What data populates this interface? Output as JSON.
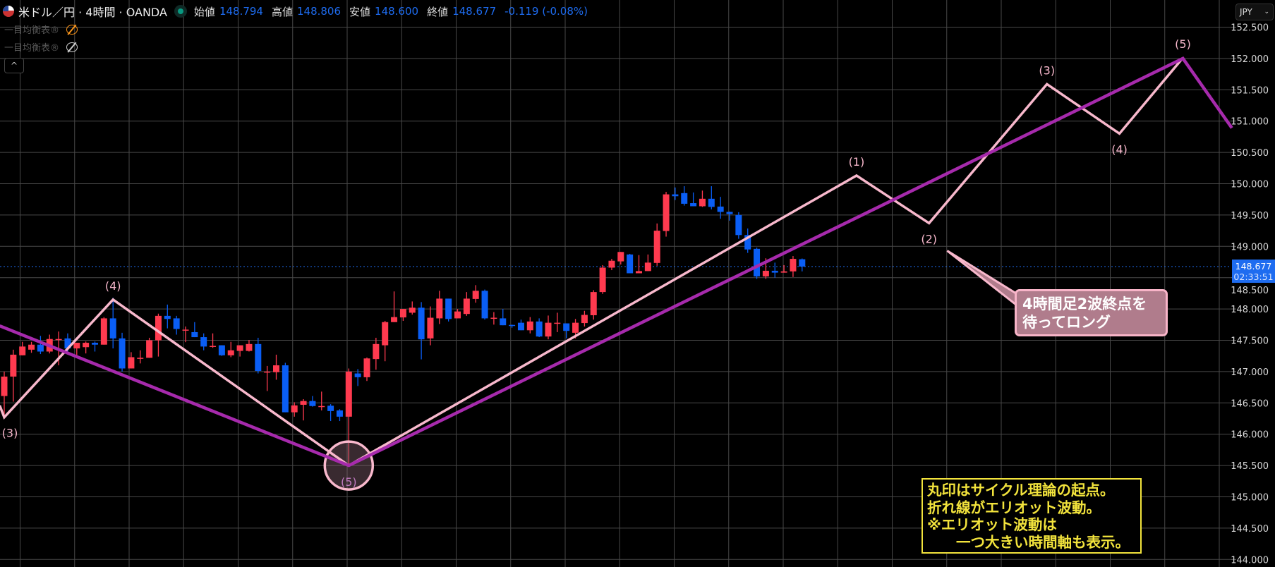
{
  "header": {
    "symbol_title": "米ドル／円 · 4時間 · OANDA",
    "market_status": "open",
    "open_label": "始値",
    "open_value": "148.794",
    "high_label": "高値",
    "high_value": "148.806",
    "low_label": "安値",
    "low_value": "148.600",
    "close_label": "終値",
    "close_value": "148.677",
    "change": "-0.119 (-0.08%)"
  },
  "indicators": [
    {
      "name": "一目均衡表®",
      "icon": "eye-crossed-icon",
      "color": "#f7931a"
    },
    {
      "name": "一目均衡表®",
      "icon": "eye-crossed-icon",
      "color": "#cccccc"
    }
  ],
  "collapse_button": "^",
  "currency_selector": {
    "value": "JPY",
    "icon": "chevron-down-icon"
  },
  "price_axis": {
    "ticks": [
      "152.500",
      "152.000",
      "151.500",
      "151.000",
      "150.500",
      "150.000",
      "149.500",
      "149.000",
      "148.500",
      "148.000",
      "147.500",
      "147.000",
      "146.500",
      "146.000",
      "145.500",
      "145.000",
      "144.500",
      "144.000"
    ],
    "current_price": "148.677",
    "countdown": "02:33:51"
  },
  "callout": {
    "text_line1": "4時間足2波終点を",
    "text_line2": "待ってロング"
  },
  "note": {
    "text": "丸印はサイクル理論の起点。\n折れ線がエリオット波動。\n※エリオット波動は\n　　一つ大きい時間軸も表示。"
  },
  "colors": {
    "up": "#ff3a4f",
    "down": "#0a5ef5",
    "wave_small": "#f8b8cc",
    "wave_large": "#a62aac",
    "accent": "#1e6cf0",
    "note": "#f2e33c",
    "grid": "#484848"
  },
  "chart_data": {
    "type": "candlestick",
    "ylim": [
      144.0,
      152.5
    ],
    "grid": true,
    "candles_ohlc": [
      [
        146.61,
        147.0,
        146.27,
        146.92
      ],
      [
        146.92,
        147.35,
        146.52,
        147.27
      ],
      [
        147.26,
        147.475,
        147.26,
        147.4
      ],
      [
        147.35,
        147.475,
        147.3,
        147.43
      ],
      [
        147.43,
        147.57,
        147.28,
        147.32
      ],
      [
        147.32,
        147.59,
        147.29,
        147.52
      ],
      [
        147.52,
        147.64,
        147.1,
        147.52
      ],
      [
        147.53,
        147.61,
        147.28,
        147.37
      ],
      [
        147.37,
        147.46,
        147.26,
        147.46
      ],
      [
        147.39,
        147.48,
        147.29,
        147.46
      ],
      [
        147.46,
        147.48,
        147.32,
        147.43
      ],
      [
        147.43,
        147.87,
        147.43,
        147.85
      ],
      [
        147.85,
        148.18,
        147.37,
        147.53
      ],
      [
        147.53,
        147.62,
        147.0,
        147.05
      ],
      [
        147.05,
        147.31,
        147.05,
        147.23
      ],
      [
        147.22,
        147.34,
        147.13,
        147.22
      ],
      [
        147.22,
        147.54,
        147.22,
        147.5
      ],
      [
        147.5,
        147.925,
        147.24,
        147.89
      ],
      [
        147.89,
        148.07,
        147.69,
        147.84
      ],
      [
        147.85,
        147.89,
        147.59,
        147.68
      ],
      [
        147.67,
        147.72,
        147.47,
        147.67
      ],
      [
        147.63,
        147.79,
        147.55,
        147.55
      ],
      [
        147.55,
        147.61,
        147.34,
        147.4
      ],
      [
        147.41,
        147.61,
        147.38,
        147.41
      ],
      [
        147.42,
        147.42,
        147.25,
        147.26
      ],
      [
        147.26,
        147.475,
        147.23,
        147.34
      ],
      [
        147.33,
        147.42,
        147.24,
        147.42
      ],
      [
        147.33,
        147.505,
        147.32,
        147.44
      ],
      [
        147.44,
        147.54,
        146.97,
        147.01
      ],
      [
        147.0,
        147.09,
        146.69,
        147.0
      ],
      [
        146.99,
        147.27,
        146.87,
        147.1
      ],
      [
        147.1,
        147.14,
        146.35,
        146.35
      ],
      [
        146.35,
        146.51,
        146.28,
        146.46
      ],
      [
        146.47,
        146.56,
        146.22,
        146.53
      ],
      [
        146.53,
        146.61,
        146.44,
        146.45
      ],
      [
        146.45,
        146.68,
        146.38,
        146.45
      ],
      [
        146.455,
        146.48,
        146.21,
        146.37
      ],
      [
        146.38,
        146.4,
        146.21,
        146.28
      ],
      [
        146.28,
        147.05,
        145.52,
        147.0
      ],
      [
        146.97,
        147.04,
        146.77,
        146.91
      ],
      [
        146.91,
        147.225,
        146.85,
        147.21
      ],
      [
        147.2,
        147.54,
        147.03,
        147.44
      ],
      [
        147.42,
        147.81,
        147.165,
        147.79
      ],
      [
        147.79,
        148.28,
        147.79,
        147.87
      ],
      [
        147.865,
        148.0,
        147.81,
        148.0
      ],
      [
        147.94,
        148.12,
        147.91,
        148.02
      ],
      [
        148.02,
        148.11,
        147.195,
        147.515
      ],
      [
        147.53,
        148.04,
        147.42,
        147.86
      ],
      [
        147.85,
        148.29,
        147.76,
        148.165
      ],
      [
        148.165,
        148.165,
        147.8,
        147.84
      ],
      [
        147.85,
        148.0,
        147.85,
        147.96
      ],
      [
        147.92,
        148.27,
        147.89,
        148.165
      ],
      [
        148.16,
        148.38,
        148.1,
        148.29
      ],
      [
        148.29,
        148.31,
        147.83,
        147.85
      ],
      [
        147.86,
        147.95,
        147.75,
        147.86
      ],
      [
        147.85,
        148.0,
        147.74,
        147.74
      ],
      [
        147.745,
        147.75,
        147.7,
        147.74
      ],
      [
        147.78,
        147.83,
        147.66,
        147.66
      ],
      [
        147.66,
        147.87,
        147.61,
        147.8
      ],
      [
        147.8,
        147.85,
        147.55,
        147.56
      ],
      [
        147.56,
        147.895,
        147.515,
        147.78
      ],
      [
        147.78,
        147.94,
        147.63,
        147.78
      ],
      [
        147.77,
        147.77,
        147.53,
        147.65
      ],
      [
        147.62,
        147.84,
        147.53,
        147.78
      ],
      [
        147.775,
        147.97,
        147.72,
        147.905
      ],
      [
        147.9,
        148.3,
        147.83,
        148.27
      ],
      [
        148.27,
        148.7,
        148.24,
        148.66
      ],
      [
        148.66,
        148.8,
        148.62,
        148.77
      ],
      [
        148.76,
        148.91,
        148.71,
        148.91
      ],
      [
        148.87,
        148.88,
        148.57,
        148.57
      ],
      [
        148.57,
        148.86,
        148.57,
        148.605
      ],
      [
        148.605,
        148.87,
        148.605,
        148.74
      ],
      [
        148.735,
        149.365,
        148.69,
        149.25
      ],
      [
        149.245,
        149.87,
        149.155,
        149.83
      ],
      [
        149.83,
        149.94,
        149.74,
        149.8
      ],
      [
        149.85,
        149.96,
        149.65,
        149.68
      ],
      [
        149.69,
        149.86,
        149.64,
        149.64
      ],
      [
        149.64,
        149.89,
        149.63,
        149.76
      ],
      [
        149.76,
        149.96,
        149.59,
        149.63
      ],
      [
        149.635,
        149.79,
        149.44,
        149.55
      ],
      [
        149.55,
        149.555,
        149.41,
        149.515
      ],
      [
        149.5,
        149.545,
        149.12,
        149.18
      ],
      [
        149.18,
        149.285,
        148.895,
        148.95
      ],
      [
        148.96,
        148.98,
        148.48,
        148.52
      ],
      [
        148.52,
        148.81,
        148.48,
        148.61
      ],
      [
        148.61,
        148.74,
        148.5,
        148.58
      ],
      [
        148.58,
        148.7,
        148.58,
        148.6
      ],
      [
        148.6,
        148.845,
        148.51,
        148.8
      ],
      [
        148.794,
        148.806,
        148.6,
        148.677
      ]
    ],
    "waves": [
      {
        "role": "elliott-4h",
        "color": "#f8b8cc",
        "points": [
          [
            -0.5,
            146.46
          ],
          [
            0,
            146.27
          ],
          [
            12,
            148.15
          ],
          [
            38,
            145.5
          ],
          [
            94,
            150.13
          ],
          [
            102,
            149.37
          ],
          [
            115,
            151.59
          ],
          [
            123,
            150.8
          ],
          [
            130,
            152.01
          ]
        ]
      },
      {
        "role": "elliott-higher-timeframe",
        "color": "#a62aac",
        "points": [
          [
            -0.5,
            147.73
          ],
          [
            38,
            145.5
          ],
          [
            130,
            152.0
          ],
          [
            135.4,
            150.89
          ]
        ]
      }
    ],
    "wave_labels": [
      {
        "text": "(3)",
        "bar": 0,
        "price": 146.27,
        "side": "below"
      },
      {
        "text": "(4)",
        "bar": 12,
        "price": 148.15,
        "side": "above"
      },
      {
        "text": "(5)",
        "bar": 38,
        "price": 145.5,
        "side": "circle"
      },
      {
        "text": "(1)",
        "bar": 94,
        "price": 150.13,
        "side": "above"
      },
      {
        "text": "(2)",
        "bar": 102,
        "price": 149.37,
        "side": "below"
      },
      {
        "text": "(3)",
        "bar": 115,
        "price": 151.59,
        "side": "above"
      },
      {
        "text": "(4)",
        "bar": 123,
        "price": 150.8,
        "side": "below"
      },
      {
        "text": "(5)",
        "bar": 130,
        "price": 152.01,
        "side": "above"
      }
    ],
    "cycle_start_marker": {
      "bar": 38,
      "price": 145.5
    },
    "callout_target": {
      "bar": 104,
      "price": 148.93
    }
  }
}
